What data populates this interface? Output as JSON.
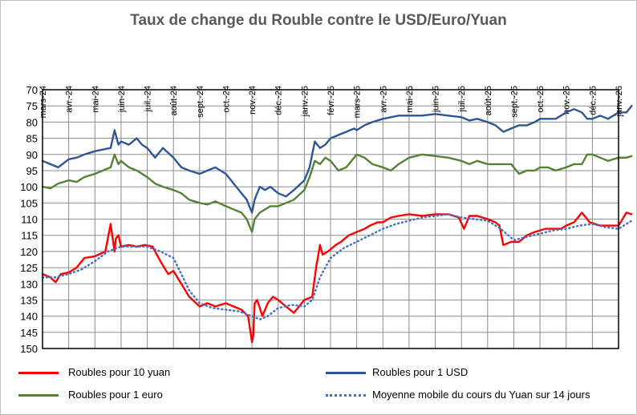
{
  "chart_data": {
    "type": "line",
    "title": "Taux de change du Rouble contre le USD/Euro/Yuan",
    "xlabel": "",
    "ylabel": "",
    "x_categories": [
      "mars-24",
      "avr.-24",
      "mai-24",
      "juin-24",
      "juil.-24",
      "août-24",
      "sept.-24",
      "oct.-24",
      "nov.-24",
      "déc.-24",
      "janv.-25",
      "févr.-25",
      "mars-25",
      "avr.-25",
      "mai-25",
      "juin-25",
      "juil.-25",
      "août-25",
      "sept.-25",
      "oct.-25",
      "nov.-25",
      "déc.-25",
      "janv.-26"
    ],
    "y_ticks": [
      70,
      75,
      80,
      85,
      90,
      95,
      100,
      105,
      110,
      115,
      120,
      125,
      130,
      135,
      140,
      145,
      150
    ],
    "ylim": [
      70,
      150
    ],
    "y_inverted": true,
    "grid": true,
    "legend": "bottom",
    "series": [
      {
        "name": "Roubles pour 10 yuan",
        "color": "#ff0000",
        "style": "solid",
        "x": [
          0,
          0.3,
          0.5,
          0.7,
          1.0,
          1.3,
          1.6,
          2.0,
          2.4,
          2.6,
          2.75,
          2.8,
          2.9,
          3.0,
          3.3,
          3.6,
          3.9,
          4.2,
          4.5,
          4.8,
          5.0,
          5.3,
          5.6,
          6.0,
          6.3,
          6.6,
          7.0,
          7.3,
          7.6,
          7.85,
          8.0,
          8.05,
          8.1,
          8.2,
          8.4,
          8.6,
          8.8,
          9.0,
          9.3,
          9.6,
          9.8,
          10.0,
          10.3,
          10.45,
          10.6,
          10.7,
          10.9,
          11.2,
          11.4,
          11.7,
          12.0,
          12.3,
          12.5,
          12.8,
          13.0,
          13.3,
          13.6,
          14.0,
          14.5,
          15.0,
          15.5,
          15.9,
          16.1,
          16.3,
          16.6,
          17.0,
          17.3,
          17.45,
          17.6,
          17.9,
          18.2,
          18.5,
          18.8,
          19.2,
          19.5,
          19.8,
          20.0,
          20.3,
          20.6,
          20.9,
          21.3,
          21.7,
          22.0,
          22.3,
          22.5
        ],
        "values": [
          127,
          128,
          129.5,
          127,
          126.5,
          125,
          122,
          121.5,
          120,
          111.5,
          120,
          116,
          115,
          118.5,
          118,
          118.5,
          118,
          118.5,
          123,
          127,
          126,
          130,
          134,
          137,
          136,
          137,
          136,
          137,
          138,
          140,
          148,
          146,
          136,
          135,
          140,
          136,
          134,
          135,
          137,
          139,
          137,
          135,
          134,
          125,
          118,
          121,
          120,
          118,
          117,
          115,
          114,
          113,
          112,
          111,
          111,
          109.5,
          109,
          108.5,
          109,
          108.5,
          108.5,
          109.5,
          113,
          109,
          109,
          110,
          111,
          112,
          118,
          117,
          117,
          115,
          114,
          113,
          113,
          113,
          112,
          111,
          108,
          111,
          112,
          112,
          112,
          108,
          108.5
        ]
      },
      {
        "name": "Roubles pour 1 USD",
        "color": "#2f5597",
        "style": "solid",
        "x": [
          0,
          0.3,
          0.6,
          1.0,
          1.3,
          1.6,
          2.0,
          2.3,
          2.6,
          2.75,
          2.9,
          3.0,
          3.3,
          3.6,
          3.8,
          4.0,
          4.3,
          4.6,
          5.0,
          5.3,
          5.6,
          6.0,
          6.3,
          6.6,
          7.0,
          7.3,
          7.6,
          7.8,
          7.9,
          8.0,
          8.1,
          8.2,
          8.3,
          8.5,
          8.7,
          9.0,
          9.3,
          9.6,
          10.0,
          10.2,
          10.4,
          10.6,
          10.8,
          11.0,
          11.3,
          11.6,
          11.9,
          12.0,
          12.3,
          12.6,
          13.0,
          13.3,
          13.6,
          14.0,
          14.5,
          15.0,
          15.5,
          16.0,
          16.3,
          16.6,
          17.0,
          17.3,
          17.6,
          17.9,
          18.2,
          18.5,
          18.8,
          19.0,
          19.3,
          19.6,
          20.0,
          20.3,
          20.6,
          20.8,
          21.0,
          21.3,
          21.6,
          22.0,
          22.3,
          22.5
        ],
        "values": [
          92,
          93,
          94,
          91.5,
          91,
          90,
          89,
          88.5,
          88,
          82.5,
          87,
          86,
          87,
          85,
          87,
          88,
          91,
          88,
          91,
          94,
          95,
          96,
          95,
          94,
          96,
          99,
          102,
          104,
          106,
          108,
          104,
          102,
          100,
          101,
          100,
          102,
          103,
          101,
          98,
          94,
          86,
          88,
          87,
          85,
          84,
          83,
          82,
          82.5,
          81,
          80,
          79,
          78.5,
          78,
          78,
          78,
          77.5,
          78,
          78.5,
          79.5,
          79,
          80,
          81,
          83,
          82,
          81,
          81,
          80,
          79,
          79,
          79,
          77,
          76,
          77,
          79,
          79,
          78,
          79,
          77,
          77,
          75
        ]
      },
      {
        "name": "Roubles pour 1 euro",
        "color": "#548235",
        "style": "solid",
        "x": [
          0,
          0.3,
          0.6,
          1.0,
          1.3,
          1.6,
          2.0,
          2.3,
          2.6,
          2.75,
          2.9,
          3.0,
          3.3,
          3.6,
          4.0,
          4.3,
          4.6,
          5.0,
          5.3,
          5.6,
          6.0,
          6.3,
          6.6,
          7.0,
          7.3,
          7.6,
          7.8,
          7.9,
          8.0,
          8.1,
          8.3,
          8.5,
          8.7,
          9.0,
          9.3,
          9.6,
          10.0,
          10.2,
          10.4,
          10.6,
          10.8,
          11.0,
          11.3,
          11.6,
          11.9,
          12.0,
          12.3,
          12.6,
          13.0,
          13.3,
          13.6,
          14.0,
          14.5,
          15.0,
          15.5,
          16.0,
          16.3,
          16.6,
          17.0,
          17.3,
          17.6,
          17.9,
          18.2,
          18.5,
          18.8,
          19.0,
          19.3,
          19.6,
          20.0,
          20.3,
          20.6,
          20.8,
          21.0,
          21.3,
          21.6,
          22.0,
          22.3,
          22.5
        ],
        "values": [
          100,
          100.5,
          99,
          98,
          98.5,
          97,
          96,
          95,
          94,
          90,
          93,
          92,
          94,
          95,
          97,
          99,
          100,
          101,
          102,
          104,
          105,
          105.5,
          104.5,
          106,
          107,
          108,
          110,
          112,
          114,
          110,
          108,
          107,
          106,
          106,
          105,
          104,
          101,
          97,
          92,
          93,
          91,
          92,
          95,
          94,
          91,
          90,
          91,
          93,
          94,
          95,
          93,
          91,
          90,
          90.5,
          91,
          92,
          93,
          92,
          93,
          93,
          93,
          93,
          96,
          95,
          95,
          94,
          94,
          95,
          94,
          93,
          93,
          90,
          90,
          91,
          92,
          91,
          91,
          90.5
        ]
      },
      {
        "name": "Moyenne mobile du cours du Yuan sur 14 jours",
        "color": "#4472c4",
        "style": "dotted",
        "x": [
          0,
          0.5,
          1.0,
          1.5,
          2.0,
          2.5,
          3.0,
          3.5,
          4.0,
          4.5,
          5.0,
          5.3,
          5.6,
          6.0,
          6.5,
          7.0,
          7.5,
          8.0,
          8.3,
          8.6,
          9.0,
          9.5,
          10.0,
          10.3,
          10.6,
          11.0,
          11.5,
          12.0,
          12.5,
          13.0,
          13.5,
          14.0,
          14.5,
          15.0,
          15.5,
          16.0,
          16.5,
          17.0,
          17.5,
          18.0,
          18.5,
          19.0,
          19.5,
          20.0,
          20.5,
          21.0,
          21.5,
          22.0,
          22.5
        ],
        "values": [
          128,
          128,
          127,
          125.5,
          123,
          120,
          118.5,
          118.5,
          118.5,
          120,
          122,
          127,
          132,
          136,
          137.5,
          138,
          138.5,
          140,
          141,
          140,
          137.5,
          136.5,
          137,
          135,
          128,
          122,
          119,
          117,
          115,
          113,
          111.5,
          110.5,
          109.5,
          109,
          108.5,
          109.5,
          110,
          110.5,
          113,
          116.5,
          115.5,
          114.5,
          113.5,
          113,
          112,
          111.5,
          112.5,
          113,
          110.5
        ]
      }
    ]
  }
}
